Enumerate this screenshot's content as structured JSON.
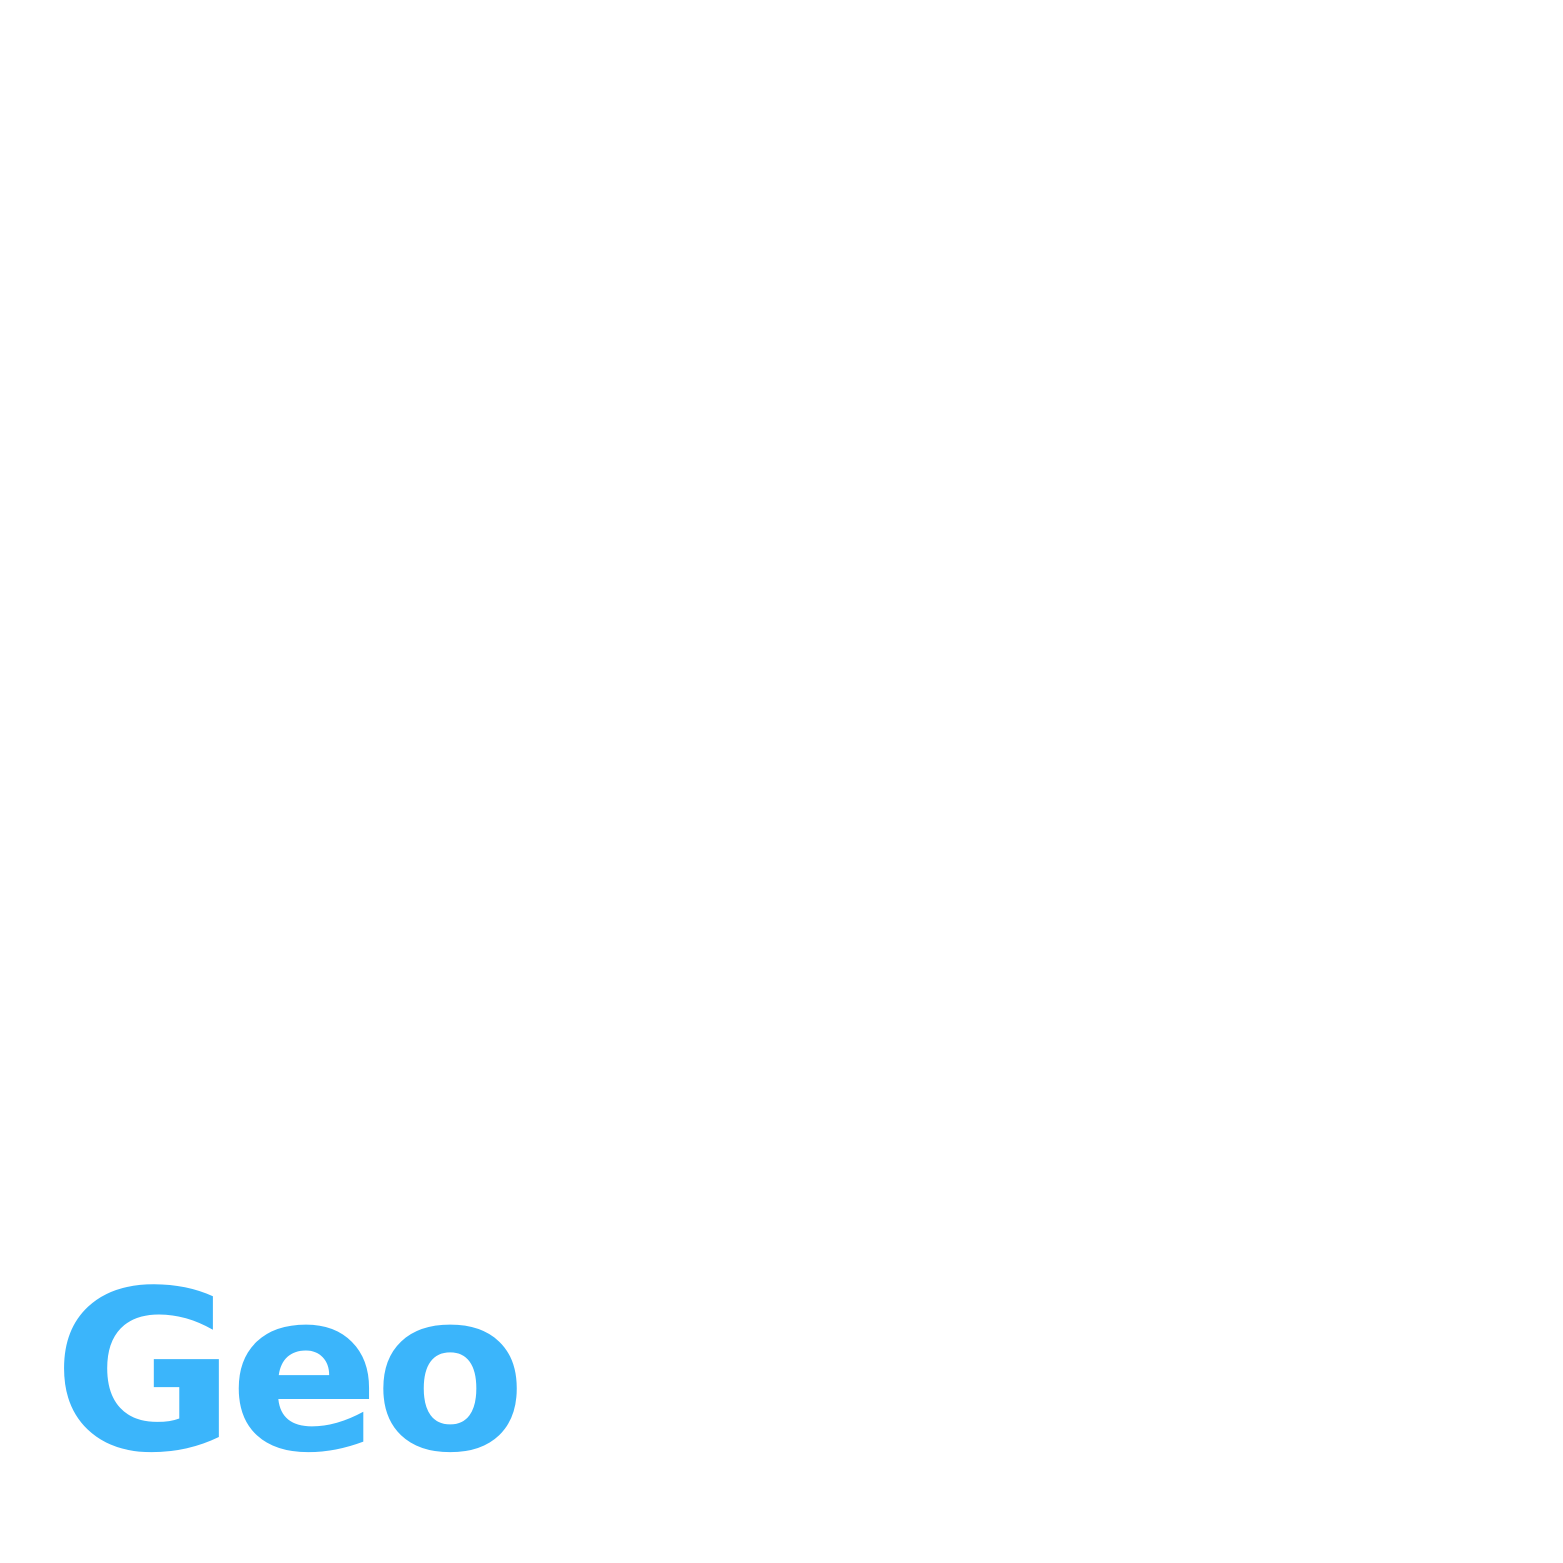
{
  "logo": {
    "text": "Geo",
    "color": "#3bb5fb"
  },
  "background_color": "#ffffff"
}
